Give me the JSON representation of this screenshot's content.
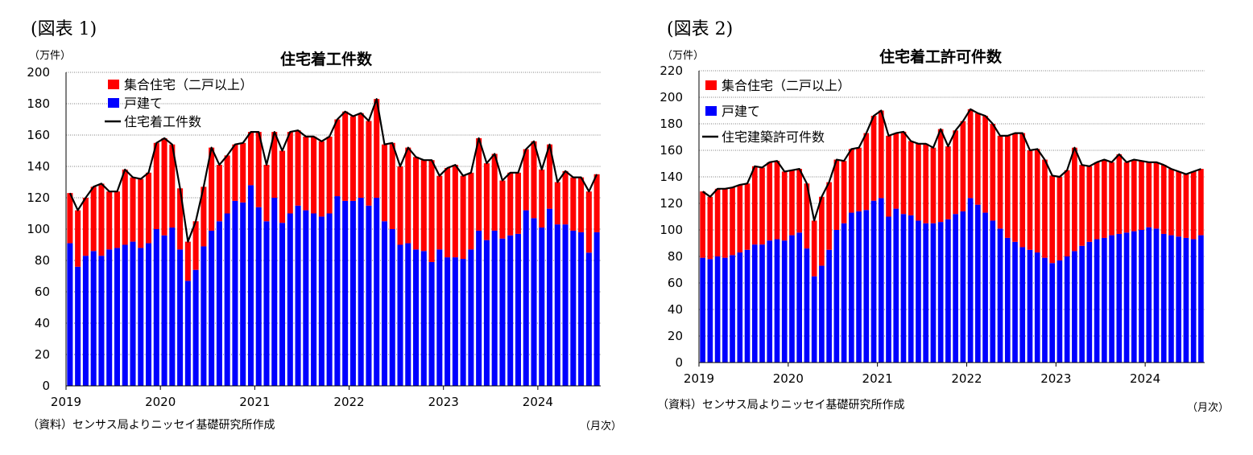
{
  "chart_data": [
    {
      "type": "bar",
      "figure_label": "(図表 1)",
      "title": "住宅着工件数",
      "unit_label": "（万件）",
      "source": "（資料）センサス局よりニッセイ基礎研究所作成",
      "period_label": "（月次）",
      "ylim": [
        0,
        200
      ],
      "y_ticks": [
        0,
        20,
        40,
        60,
        80,
        100,
        120,
        140,
        160,
        180,
        200
      ],
      "x_tick_labels": [
        "2019",
        "2020",
        "2021",
        "2022",
        "2023",
        "2024"
      ],
      "start": "2019-01",
      "end": "2024-08",
      "grid": true,
      "legend_position": "top-left",
      "legend": [
        "集合住宅（二戸以上）",
        "戸建て",
        "住宅着工件数"
      ],
      "colors": {
        "multi": "#ff0000",
        "single": "#0000ff",
        "total": "#000000"
      },
      "series": [
        {
          "name": "戸建て",
          "values": [
            91,
            76,
            83,
            86,
            83,
            87,
            88,
            90,
            92,
            88,
            91,
            100,
            96,
            101,
            87,
            67,
            74,
            89,
            99,
            105,
            110,
            118,
            117,
            128,
            114,
            105,
            120,
            104,
            110,
            115,
            112,
            110,
            108,
            110,
            121,
            118,
            118,
            120,
            115,
            120,
            105,
            100,
            90,
            91,
            87,
            86,
            79,
            87,
            82,
            82,
            81,
            87,
            99,
            93,
            99,
            94,
            96,
            97,
            112,
            107,
            101,
            113,
            103,
            103,
            99,
            98,
            85,
            98
          ]
        },
        {
          "name": "集合住宅（二戸以上）",
          "values": [
            32,
            36,
            37,
            41,
            46,
            37,
            36,
            48,
            41,
            44,
            45,
            55,
            62,
            53,
            39,
            25,
            31,
            38,
            53,
            36,
            37,
            36,
            38,
            34,
            48,
            36,
            42,
            46,
            52,
            48,
            47,
            49,
            48,
            49,
            49,
            57,
            54,
            54,
            54,
            63,
            49,
            55,
            50,
            61,
            59,
            58,
            65,
            47,
            57,
            59,
            53,
            49,
            59,
            49,
            49,
            37,
            40,
            39,
            39,
            49,
            37,
            41,
            27,
            34,
            34,
            35,
            39,
            37
          ]
        },
        {
          "name": "住宅着工件数",
          "values": [
            123,
            112,
            120,
            127,
            129,
            124,
            124,
            138,
            133,
            132,
            136,
            155,
            158,
            154,
            126,
            92,
            105,
            127,
            152,
            141,
            147,
            154,
            155,
            162,
            162,
            141,
            162,
            150,
            162,
            163,
            159,
            159,
            156,
            159,
            170,
            175,
            172,
            174,
            169,
            183,
            154,
            155,
            140,
            152,
            146,
            144,
            144,
            134,
            139,
            141,
            134,
            136,
            158,
            142,
            148,
            131,
            136,
            136,
            151,
            156,
            138,
            154,
            130,
            137,
            133,
            133,
            124,
            135
          ]
        }
      ]
    },
    {
      "type": "bar",
      "figure_label": "(図表 2)",
      "title": "住宅着工許可件数",
      "unit_label": "（万件）",
      "source": "（資料）センサス局よりニッセイ基礎研究所作成",
      "period_label": "（月次）",
      "ylim": [
        0,
        220
      ],
      "y_ticks": [
        0,
        20,
        40,
        60,
        80,
        100,
        120,
        140,
        160,
        180,
        200,
        220
      ],
      "x_tick_labels": [
        "2019",
        "2020",
        "2021",
        "2022",
        "2023",
        "2024"
      ],
      "start": "2019-01",
      "end": "2024-08",
      "grid": true,
      "legend_position": "top-left",
      "legend": [
        "集合住宅（二戸以上）",
        "戸建て",
        "住宅建築許可件数"
      ],
      "colors": {
        "multi": "#ff0000",
        "single": "#0000ff",
        "total": "#000000"
      },
      "series": [
        {
          "name": "戸建て",
          "values": [
            79,
            78,
            80,
            79,
            81,
            83,
            85,
            89,
            89,
            92,
            93,
            92,
            96,
            98,
            86,
            65,
            73,
            85,
            100,
            105,
            113,
            114,
            115,
            122,
            124,
            110,
            116,
            112,
            111,
            107,
            105,
            105,
            106,
            108,
            112,
            114,
            124,
            119,
            113,
            107,
            101,
            94,
            91,
            87,
            85,
            83,
            79,
            75,
            77,
            80,
            84,
            88,
            91,
            93,
            94,
            96,
            97,
            98,
            99,
            100,
            102,
            101,
            97,
            96,
            95,
            94,
            93,
            96
          ]
        },
        {
          "name": "集合住宅（二戸以上）",
          "values": [
            50,
            47,
            51,
            52,
            51,
            51,
            50,
            59,
            58,
            59,
            59,
            52,
            49,
            48,
            49,
            42,
            52,
            51,
            53,
            47,
            48,
            48,
            58,
            64,
            66,
            61,
            57,
            62,
            56,
            58,
            60,
            57,
            70,
            55,
            63,
            68,
            67,
            69,
            73,
            73,
            70,
            77,
            82,
            86,
            75,
            78,
            74,
            66,
            63,
            65,
            78,
            61,
            57,
            58,
            59,
            55,
            60,
            53,
            54,
            52,
            49,
            50,
            52,
            50,
            49,
            48,
            51,
            50
          ]
        },
        {
          "name": "住宅建築許可件数",
          "values": [
            129,
            125,
            131,
            131,
            132,
            134,
            135,
            148,
            147,
            151,
            152,
            144,
            145,
            146,
            135,
            107,
            125,
            136,
            153,
            152,
            161,
            162,
            173,
            186,
            190,
            171,
            173,
            174,
            167,
            165,
            165,
            162,
            176,
            163,
            175,
            182,
            191,
            188,
            186,
            180,
            171,
            171,
            173,
            173,
            160,
            161,
            153,
            141,
            140,
            145,
            162,
            149,
            148,
            151,
            153,
            151,
            157,
            151,
            153,
            152,
            151,
            151,
            149,
            146,
            144,
            142,
            144,
            146
          ]
        }
      ]
    }
  ]
}
